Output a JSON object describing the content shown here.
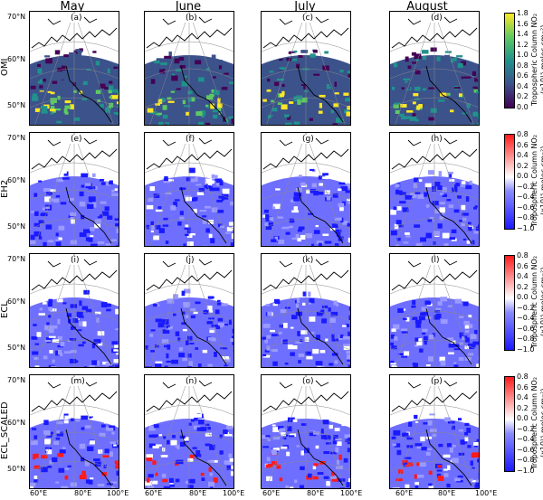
{
  "columns": [
    "May",
    "June",
    "July",
    "August"
  ],
  "rows": [
    {
      "label": "OMI",
      "panels": [
        "(a)",
        "(b)",
        "(c)",
        "(d)"
      ]
    },
    {
      "label": "EH2",
      "panels": [
        "(e)",
        "(f)",
        "(g)",
        "(h)"
      ]
    },
    {
      "label": "ECL",
      "panels": [
        "(i)",
        "(j)",
        "(k)",
        "(l)"
      ]
    },
    {
      "label": "ECL_SCALED",
      "panels": [
        "(m)",
        "(n)",
        "(o)",
        "(p)"
      ]
    }
  ],
  "lat_labels": [
    "70°N",
    "60°N",
    "50°N"
  ],
  "lon_labels": [
    "60°E",
    "80°E",
    "100°E"
  ],
  "colorbars": [
    {
      "label_line1": "Tropospheric Column NO₂",
      "label_line2": "(x10¹⁵ molec cm⁻²)",
      "ticks": [
        "1.8",
        "1.6",
        "1.4",
        "1.2",
        "1.0",
        "0.8",
        "0.6",
        "0.4",
        "0.2",
        "0.0"
      ],
      "colormap": "viridis"
    },
    {
      "label_line1": "Tropospheric Column NO₂",
      "label_line2": "(x10¹⁵ molec cm⁻²)",
      "ticks": [
        "0.8",
        "0.6",
        "0.4",
        "0.2",
        "0.0",
        "−0.2",
        "−0.4",
        "−0.6",
        "−0.8",
        "−1.0"
      ],
      "colormap": "bwr"
    },
    {
      "label_line1": "Tropospheric Column NO₂",
      "label_line2": "(x10¹⁵ molec cm⁻²)",
      "ticks": [
        "0.8",
        "0.6",
        "0.4",
        "0.2",
        "0.0",
        "−0.2",
        "−0.4",
        "−0.6",
        "−0.8",
        "−1.0"
      ],
      "colormap": "bwr"
    },
    {
      "label_line1": "Tropospheric Column NO₂",
      "label_line2": "(x10¹⁵ molec cm⁻²)",
      "ticks": [
        "0.8",
        "0.6",
        "0.4",
        "0.2",
        "0.0",
        "−0.2",
        "−0.4",
        "−0.6",
        "−0.8",
        "−1.0"
      ],
      "colormap": "bwr"
    }
  ],
  "colors": {
    "viridis": [
      "#440154",
      "#3b528b",
      "#21918c",
      "#5ec962",
      "#fde725"
    ],
    "bwr_low": "#1a1aff",
    "bwr_mid": "#ffffff",
    "bwr_high": "#ff1a1a"
  }
}
